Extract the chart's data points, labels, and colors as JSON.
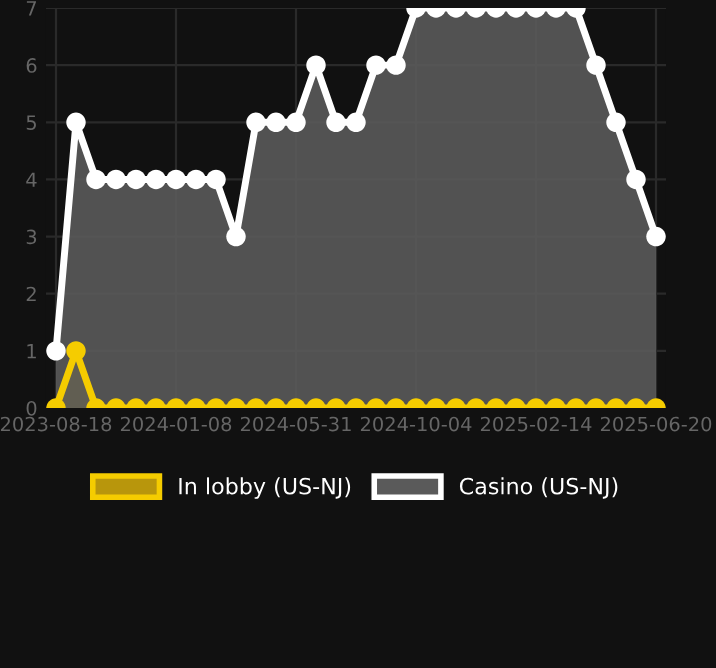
{
  "chart_data": {
    "type": "area",
    "categories": [
      "2023-08-18",
      null,
      null,
      null,
      null,
      null,
      "2024-01-08",
      null,
      null,
      null,
      null,
      null,
      "2024-05-31",
      null,
      null,
      null,
      null,
      null,
      "2024-10-04",
      null,
      null,
      null,
      null,
      null,
      "2025-02-14",
      null,
      null,
      null,
      null,
      null,
      "2025-06-20"
    ],
    "series": [
      {
        "name": "In lobby (US-NJ)",
        "color": "#f5cc00",
        "values": [
          0,
          1,
          0,
          0,
          0,
          0,
          0,
          0,
          0,
          0,
          0,
          0,
          0,
          0,
          0,
          0,
          0,
          0,
          0,
          0,
          0,
          0,
          0,
          0,
          0,
          0,
          0,
          0,
          0,
          0,
          0
        ]
      },
      {
        "name": "Casino (US-NJ)",
        "color": "#ffffff",
        "values": [
          1,
          5,
          4,
          4,
          4,
          4,
          4,
          4,
          4,
          3,
          5,
          5,
          5,
          6,
          5,
          5,
          6,
          6,
          7,
          7,
          7,
          7,
          7,
          7,
          7,
          7,
          7,
          6,
          5,
          4,
          3
        ]
      }
    ],
    "ylim": [
      0,
      7
    ],
    "yticks": [
      0,
      1,
      2,
      3,
      4,
      5,
      6,
      7
    ],
    "grid": true,
    "legend": "bottom",
    "marker": "circle",
    "line_style": "solid"
  }
}
